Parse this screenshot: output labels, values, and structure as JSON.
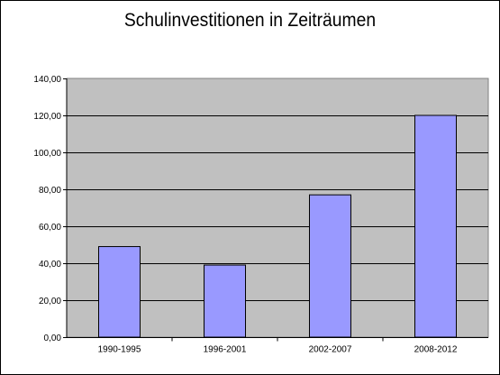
{
  "chart_data": {
    "type": "bar",
    "title": "Schulinvestitionen in Zeiträumen",
    "categories": [
      "1990-1995",
      "1996-2001",
      "2002-2007",
      "2008-2012"
    ],
    "values": [
      49,
      39,
      77,
      120
    ],
    "ylim": [
      0,
      140
    ],
    "ytick_labels": [
      "0,00",
      "20,00",
      "40,00",
      "60,00",
      "80,00",
      "100,00",
      "120,00",
      "140,00"
    ],
    "xlabel": "",
    "ylabel": "",
    "grid": true,
    "legend": "none",
    "colors": {
      "bar_fill": "#9999ff",
      "plot_background": "#c0c0c0",
      "gridline": "#000000"
    }
  }
}
